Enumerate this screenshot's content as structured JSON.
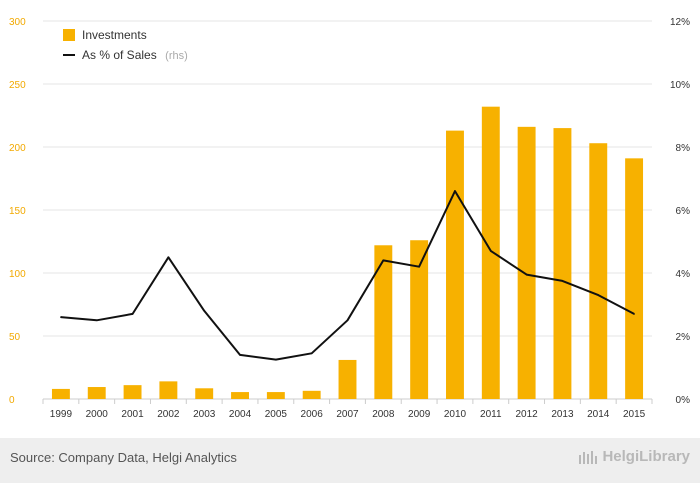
{
  "chart_data": {
    "type": "bar",
    "categories": [
      "1999",
      "2000",
      "2001",
      "2002",
      "2003",
      "2004",
      "2005",
      "2006",
      "2007",
      "2008",
      "2009",
      "2010",
      "2011",
      "2012",
      "2013",
      "2014",
      "2015"
    ],
    "series": [
      {
        "name": "Investments",
        "type": "bar",
        "axis": "left",
        "color": "#f7b100",
        "values": [
          8,
          9.5,
          11,
          14,
          8.5,
          5.5,
          5.5,
          6.5,
          31,
          122,
          126,
          213,
          232,
          216,
          215,
          203,
          191
        ]
      },
      {
        "name": "As % of Sales",
        "legend_suffix": "(rhs)",
        "type": "line",
        "axis": "right",
        "color": "#111111",
        "values": [
          2.6,
          2.5,
          2.7,
          4.5,
          2.8,
          1.4,
          1.25,
          1.45,
          2.5,
          4.4,
          4.2,
          6.6,
          4.7,
          3.95,
          3.75,
          3.3,
          2.7
        ]
      }
    ],
    "y_left": {
      "ylim": [
        0,
        300
      ],
      "ticks": [
        "0",
        "50",
        "100",
        "150",
        "200",
        "250",
        "300"
      ]
    },
    "y_right": {
      "ylim": [
        0,
        12
      ],
      "ticks": [
        "0%",
        "2%",
        "4%",
        "6%",
        "8%",
        "10%",
        "12%"
      ]
    },
    "grid": true,
    "legend_position": "top-left"
  },
  "footer": {
    "source": "Source: Company Data, Helgi Analytics",
    "brand": "HelgiLibrary"
  }
}
